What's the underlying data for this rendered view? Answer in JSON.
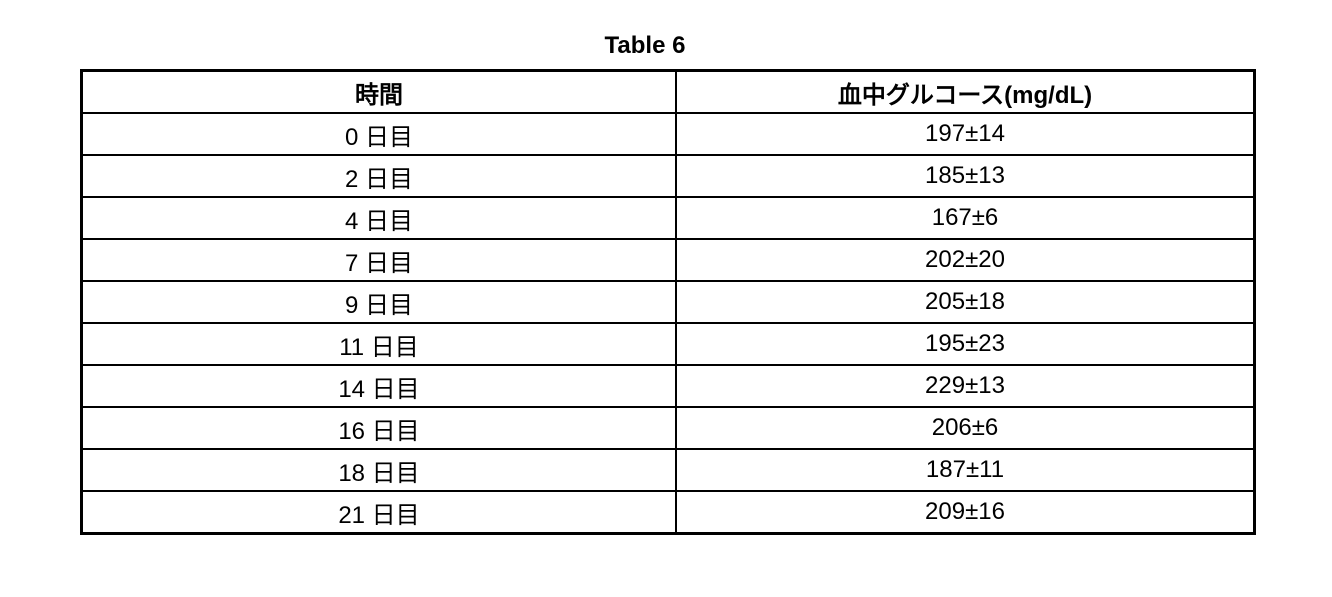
{
  "title": "Table 6",
  "table": {
    "headers": [
      "時間",
      "血中グルコース(mg/dL)"
    ],
    "rows": [
      [
        "0 日目",
        "197±14"
      ],
      [
        "2 日目",
        "185±13"
      ],
      [
        "4 日目",
        "167±6"
      ],
      [
        "7 日目",
        "202±20"
      ],
      [
        "9 日目",
        "205±18"
      ],
      [
        "11 日目",
        "195±23"
      ],
      [
        "14 日目",
        "229±13"
      ],
      [
        "16 日目",
        "206±6"
      ],
      [
        "18 日目",
        "187±11"
      ],
      [
        "21 日目",
        "209±16"
      ]
    ]
  }
}
